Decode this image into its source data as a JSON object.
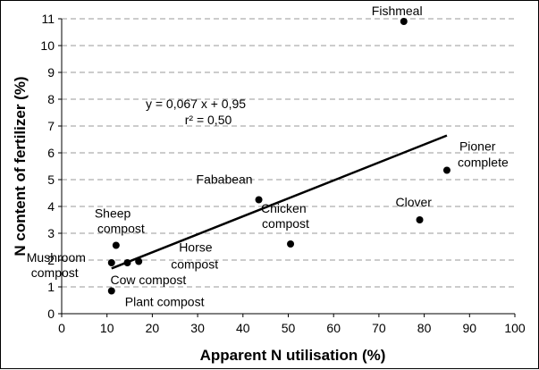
{
  "chart_data": {
    "type": "scatter",
    "title": "",
    "xlabel": "Apparent N utilisation (%)",
    "ylabel": "N content of fertilizer (%)",
    "xlim": [
      0,
      100
    ],
    "ylim": [
      0,
      11
    ],
    "xticks": [
      0,
      10,
      20,
      30,
      40,
      50,
      60,
      70,
      80,
      90,
      100
    ],
    "yticks": [
      0,
      1,
      2,
      3,
      4,
      5,
      6,
      7,
      8,
      9,
      10,
      11
    ],
    "grid": "horizontal dashed",
    "legend": "none",
    "points": [
      {
        "label": "Fishmeal",
        "x": 75.5,
        "y": 10.9
      },
      {
        "label": "Pioner complete",
        "x": 85,
        "y": 5.35
      },
      {
        "label": "Fababean",
        "x": 43.5,
        "y": 4.25
      },
      {
        "label": "Clover",
        "x": 79,
        "y": 3.5
      },
      {
        "label": "Chicken compost",
        "x": 50.5,
        "y": 2.6
      },
      {
        "label": "Sheep compost",
        "x": 12,
        "y": 2.55
      },
      {
        "label": "Mushroom compost",
        "x": 11,
        "y": 1.9
      },
      {
        "label": "Cow compost",
        "x": 14.5,
        "y": 1.9
      },
      {
        "label": "Horse compost",
        "x": 17,
        "y": 1.95
      },
      {
        "label": "Plant compost",
        "x": 11,
        "y": 0.85
      }
    ],
    "trendline": {
      "type": "linear",
      "slope": 0.067,
      "intercept": 0.95,
      "x_range": [
        11,
        85
      ],
      "equation": "y = 0,067 x + 0,95",
      "r2_text": "r² = 0,50"
    }
  }
}
